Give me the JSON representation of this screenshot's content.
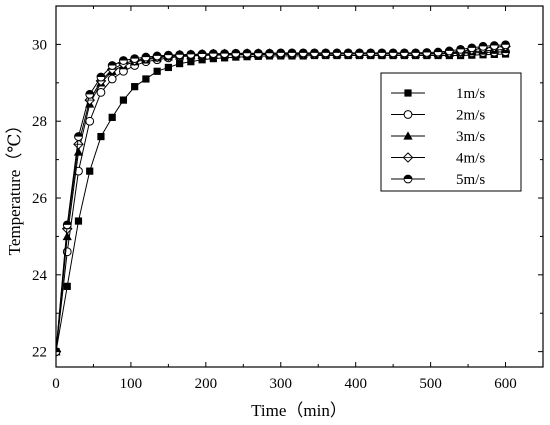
{
  "chart_data": {
    "type": "line",
    "title": "",
    "xlabel": "Time（min）",
    "ylabel": "Temperature（℃）",
    "xlim": [
      0,
      650
    ],
    "ylim": [
      21.6,
      31.0
    ],
    "x_ticks": [
      0,
      100,
      200,
      300,
      400,
      500,
      600
    ],
    "y_ticks": [
      22,
      24,
      26,
      28,
      30
    ],
    "x_tick_labels": [
      "0",
      "100",
      "200",
      "300",
      "400",
      "500",
      "600"
    ],
    "y_tick_labels": [
      "22",
      "24",
      "26",
      "28",
      "30"
    ],
    "grid": false,
    "legend_position": "upper-right",
    "x": [
      0,
      15,
      30,
      45,
      60,
      75,
      90,
      105,
      120,
      135,
      150,
      165,
      180,
      195,
      210,
      225,
      240,
      255,
      270,
      285,
      300,
      315,
      330,
      345,
      360,
      375,
      390,
      405,
      420,
      435,
      450,
      465,
      480,
      495,
      510,
      525,
      540,
      555,
      570,
      585,
      600
    ],
    "series": [
      {
        "name": "1m/s",
        "marker": "square-filled",
        "values": [
          22.0,
          23.7,
          25.4,
          26.7,
          27.6,
          28.1,
          28.55,
          28.9,
          29.1,
          29.3,
          29.4,
          29.5,
          29.55,
          29.6,
          29.63,
          29.65,
          29.67,
          29.68,
          29.69,
          29.7,
          29.7,
          29.7,
          29.7,
          29.71,
          29.71,
          29.71,
          29.71,
          29.71,
          29.71,
          29.71,
          29.71,
          29.71,
          29.71,
          29.71,
          29.71,
          29.71,
          29.71,
          29.72,
          29.73,
          29.74,
          29.75
        ]
      },
      {
        "name": "2m/s",
        "marker": "circle-open",
        "values": [
          22.0,
          24.6,
          26.7,
          28.0,
          28.75,
          29.1,
          29.3,
          29.45,
          29.55,
          29.6,
          29.65,
          29.68,
          29.7,
          29.71,
          29.72,
          29.72,
          29.73,
          29.73,
          29.73,
          29.74,
          29.74,
          29.74,
          29.74,
          29.74,
          29.74,
          29.75,
          29.75,
          29.75,
          29.75,
          29.75,
          29.75,
          29.75,
          29.75,
          29.75,
          29.75,
          29.76,
          29.77,
          29.78,
          29.79,
          29.8,
          29.81
        ]
      },
      {
        "name": "3m/s",
        "marker": "triangle-filled",
        "values": [
          22.0,
          25.0,
          27.2,
          28.45,
          29.0,
          29.3,
          29.45,
          29.55,
          29.6,
          29.65,
          29.68,
          29.7,
          29.71,
          29.72,
          29.73,
          29.73,
          29.74,
          29.74,
          29.74,
          29.75,
          29.75,
          29.75,
          29.75,
          29.75,
          29.75,
          29.75,
          29.75,
          29.75,
          29.75,
          29.75,
          29.75,
          29.75,
          29.75,
          29.75,
          29.76,
          29.77,
          29.79,
          29.81,
          29.83,
          29.85,
          29.87
        ]
      },
      {
        "name": "4m/s",
        "marker": "diamond-open",
        "values": [
          22.0,
          25.2,
          27.4,
          28.55,
          29.05,
          29.35,
          29.5,
          29.58,
          29.63,
          29.67,
          29.7,
          29.72,
          29.73,
          29.74,
          29.75,
          29.75,
          29.75,
          29.76,
          29.76,
          29.76,
          29.76,
          29.76,
          29.76,
          29.76,
          29.76,
          29.76,
          29.76,
          29.76,
          29.76,
          29.76,
          29.76,
          29.76,
          29.76,
          29.76,
          29.77,
          29.79,
          29.82,
          29.86,
          29.9,
          29.93,
          29.95
        ]
      },
      {
        "name": "5m/s",
        "marker": "circle-half",
        "values": [
          22.0,
          25.3,
          27.6,
          28.7,
          29.15,
          29.45,
          29.58,
          29.63,
          29.67,
          29.7,
          29.72,
          29.73,
          29.74,
          29.75,
          29.76,
          29.76,
          29.77,
          29.77,
          29.77,
          29.77,
          29.78,
          29.78,
          29.78,
          29.78,
          29.78,
          29.78,
          29.78,
          29.78,
          29.78,
          29.78,
          29.78,
          29.78,
          29.78,
          29.79,
          29.8,
          29.83,
          29.87,
          29.91,
          29.95,
          29.97,
          29.99
        ]
      }
    ]
  }
}
